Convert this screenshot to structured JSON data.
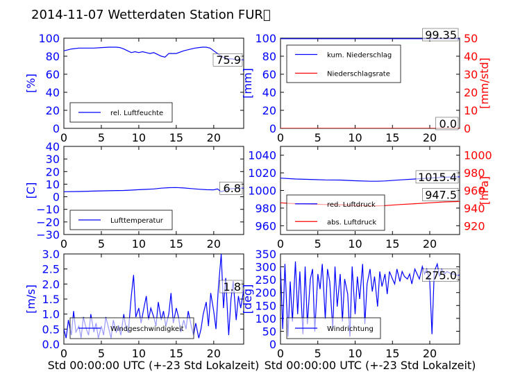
{
  "title": "2014-11-07 Wetterdaten Station FUR\u0000",
  "colors": {
    "blue": "#0000ff",
    "red": "#ff0000",
    "black": "#000000"
  },
  "chart_data": [
    {
      "id": "humidity",
      "type": "line",
      "xlim": [
        0,
        24
      ],
      "ylim": [
        0,
        100
      ],
      "xticks": [
        "0",
        "5",
        "10",
        "15",
        "20"
      ],
      "yticks": [
        "0",
        "20",
        "40",
        "60",
        "80",
        "100"
      ],
      "ylabel": "[%]",
      "last_value": "75.9",
      "series": [
        {
          "name": "rel. Luftfeuchte",
          "color": "#0000ff",
          "x": [
            0,
            0.5,
            1,
            2,
            3,
            4,
            5,
            6,
            7,
            7.5,
            8,
            8.5,
            9,
            9.5,
            10,
            10.5,
            11,
            11.5,
            12,
            12.5,
            13,
            13.5,
            14,
            15,
            16,
            17,
            17.5,
            18,
            18.5,
            19,
            19.5,
            20,
            20.5,
            21,
            21.5,
            22,
            22.5,
            23,
            23.5,
            24
          ],
          "y": [
            86,
            87,
            88,
            89,
            89,
            89,
            89.5,
            90,
            90,
            89.5,
            88,
            86,
            84,
            85,
            84,
            85,
            84,
            83,
            84,
            82,
            80,
            79,
            83,
            83,
            86,
            88,
            89,
            89.5,
            90,
            90,
            89,
            86,
            83,
            80,
            78,
            77,
            77,
            76,
            76,
            76
          ]
        }
      ]
    },
    {
      "id": "precip",
      "type": "line",
      "xlim": [
        0,
        24
      ],
      "ylim": [
        0,
        100
      ],
      "ylim_right": [
        0,
        50
      ],
      "xticks": [
        "0",
        "5",
        "10",
        "15",
        "20"
      ],
      "yticks": [
        "0",
        "20",
        "40",
        "60",
        "80",
        "100"
      ],
      "yticks_right": [
        "0",
        "10",
        "20",
        "30",
        "40",
        "50"
      ],
      "ylabel": "[mm]",
      "ylabel_right": "[mm/std]",
      "last_value": "99.35",
      "last_value_right": "0.0",
      "series": [
        {
          "name": "kum. Niederschlag",
          "color": "#0000ff",
          "axis": "left",
          "x": [
            0,
            24
          ],
          "y": [
            99.35,
            99.35
          ]
        },
        {
          "name": "Niederschlagsrate",
          "color": "#ff0000",
          "axis": "right",
          "x": [
            0,
            24
          ],
          "y": [
            0,
            0
          ]
        }
      ]
    },
    {
      "id": "temperature",
      "type": "line",
      "xlim": [
        0,
        24
      ],
      "ylim": [
        -30,
        40
      ],
      "xticks": [
        "0",
        "5",
        "10",
        "15",
        "20"
      ],
      "yticks": [
        "−30",
        "−20",
        "−10",
        "0",
        "10",
        "20",
        "30",
        "40"
      ],
      "ylabel": "[C]",
      "last_value": "6.8",
      "series": [
        {
          "name": "Lufttemperatur",
          "color": "#0000ff",
          "x": [
            0,
            2,
            4,
            6,
            8,
            9,
            10,
            11,
            12,
            13,
            14,
            15,
            16,
            17,
            18,
            19,
            20,
            20.5,
            21,
            21.5,
            22,
            23,
            24
          ],
          "y": [
            4,
            4.2,
            4.5,
            4.8,
            5,
            5.3,
            5.6,
            5.9,
            6.2,
            6.8,
            7.2,
            7.3,
            7,
            6.5,
            6,
            5.6,
            5.5,
            6.2,
            4,
            5,
            6.2,
            6.7,
            6.8
          ]
        }
      ]
    },
    {
      "id": "pressure",
      "type": "line",
      "xlim": [
        0,
        24
      ],
      "ylim": [
        950,
        1050
      ],
      "ylim_right": [
        910,
        1010
      ],
      "xticks": [
        "0",
        "5",
        "10",
        "15",
        "20"
      ],
      "yticks": [
        "960",
        "980",
        "1000",
        "1020",
        "1040"
      ],
      "yticks_right": [
        "920",
        "940",
        "960",
        "980",
        "1000"
      ],
      "ylabel_right": "[hPa]",
      "last_value": "1015.4",
      "last_value_right": "947.5",
      "series": [
        {
          "name": "red. Luftdruck",
          "color": "#0000ff",
          "axis": "left",
          "x": [
            0,
            2,
            4,
            6,
            8,
            10,
            12,
            13,
            14,
            16,
            18,
            20,
            22,
            24
          ],
          "y": [
            1014,
            1013,
            1012.5,
            1012,
            1011.8,
            1011,
            1010.5,
            1010.5,
            1010.8,
            1012,
            1013,
            1014,
            1015,
            1015.4
          ]
        },
        {
          "name": "abs. Luftdruck",
          "color": "#ff0000",
          "axis": "right",
          "x": [
            0,
            2,
            4,
            6,
            8,
            10,
            12,
            13,
            14,
            16,
            18,
            20,
            22,
            24
          ],
          "y": [
            946,
            945,
            944.5,
            944,
            943.8,
            943,
            942.5,
            942.5,
            942.8,
            944,
            945,
            946,
            947,
            947.5
          ]
        }
      ]
    },
    {
      "id": "windspeed",
      "type": "line",
      "xlim": [
        0,
        24
      ],
      "ylim": [
        0,
        3
      ],
      "xticks": [
        "0",
        "5",
        "10",
        "15",
        "20"
      ],
      "yticks": [
        "0.0",
        "0.5",
        "1.0",
        "1.5",
        "2.0",
        "2.5",
        "3.0"
      ],
      "ylabel": "[m/s]",
      "xlabel": "Std 00:00:00 UTC (+-23 Std Lokalzeit)",
      "last_value": "1.8",
      "series": [
        {
          "name": "Windgeschwindigkeit",
          "color": "#0000ff",
          "x": [
            0,
            0.3,
            0.6,
            1,
            1.3,
            1.6,
            2,
            2.3,
            2.6,
            3,
            3.3,
            3.6,
            4,
            4.3,
            4.6,
            5,
            5.3,
            5.6,
            6,
            6.3,
            6.6,
            7,
            7.3,
            7.6,
            8,
            8.3,
            8.6,
            9,
            9.3,
            9.6,
            10,
            10.3,
            10.6,
            11,
            11.3,
            11.6,
            12,
            12.3,
            12.6,
            13,
            13.3,
            13.6,
            14,
            14.3,
            14.6,
            15,
            15.3,
            15.6,
            16,
            16.3,
            16.6,
            17,
            17.3,
            17.6,
            18,
            18.3,
            18.6,
            19,
            19.3,
            19.6,
            20,
            20.3,
            20.6,
            21,
            21.3,
            21.6,
            22,
            22.3,
            22.6,
            23,
            23.3,
            23.6,
            24
          ],
          "y": [
            0.5,
            0.2,
            0.8,
            0.3,
            1.1,
            0.4,
            0.6,
            0.2,
            0.9,
            0.5,
            0.3,
            1.0,
            0.4,
            0.7,
            0.2,
            0.6,
            0.3,
            0.9,
            0.5,
            0.2,
            0.8,
            0.4,
            0.6,
            0.3,
            1.0,
            0.5,
            0.4,
            1.6,
            2.3,
            0.9,
            1.2,
            0.7,
            1.1,
            1.6,
            0.8,
            1.2,
            0.9,
            0.6,
            1.4,
            0.8,
            1.1,
            0.6,
            1.0,
            1.7,
            0.7,
            1.2,
            0.9,
            0.4,
            0.8,
            0.5,
            1.1,
            0.6,
            0.3,
            0.7,
            0.2,
            0.5,
            1.0,
            1.4,
            0.6,
            1.7,
            1.1,
            0.5,
            1.8,
            3.0,
            1.2,
            2.2,
            0.3,
            1.5,
            2.1,
            0.8,
            1.6,
            1.2,
            1.8
          ]
        }
      ]
    },
    {
      "id": "winddir",
      "type": "line",
      "xlim": [
        0,
        24
      ],
      "ylim": [
        0,
        360
      ],
      "xticks": [
        "0",
        "5",
        "10",
        "15",
        "20"
      ],
      "yticks": [
        "0",
        "50",
        "100",
        "150",
        "200",
        "250",
        "300",
        "350"
      ],
      "ylabel": "[deg]",
      "xlabel": "Std 00:00:00 UTC (+-23 Std Lokalzeit)",
      "last_value": "275.0",
      "series": [
        {
          "name": "Windrichtung",
          "color": "#0000ff",
          "x": [
            0,
            0.3,
            0.6,
            1,
            1.3,
            1.6,
            2,
            2.3,
            2.6,
            3,
            3.3,
            3.6,
            4,
            4.3,
            4.6,
            5,
            5.3,
            5.6,
            6,
            6.3,
            6.6,
            7,
            7.3,
            7.6,
            8,
            8.3,
            8.6,
            9,
            9.3,
            9.6,
            10,
            10.3,
            10.6,
            11,
            11.3,
            11.6,
            12,
            12.3,
            12.6,
            13,
            13.3,
            13.6,
            14,
            14.3,
            14.6,
            15,
            15.3,
            15.6,
            16,
            16.3,
            16.6,
            17,
            17.3,
            17.6,
            18,
            18.3,
            18.6,
            19,
            19.3,
            19.6,
            20,
            20.3,
            20.6,
            21,
            21.3,
            21.6,
            22,
            22.3,
            22.6,
            23,
            23.3,
            23.6,
            24
          ],
          "y": [
            310,
            60,
            320,
            30,
            250,
            90,
            330,
            120,
            290,
            40,
            310,
            80,
            260,
            300,
            50,
            280,
            220,
            320,
            100,
            300,
            250,
            60,
            310,
            150,
            280,
            90,
            260,
            200,
            30,
            310,
            120,
            270,
            180,
            320,
            80,
            240,
            300,
            210,
            270,
            150,
            290,
            230,
            280,
            200,
            290,
            260,
            240,
            300,
            250,
            290,
            270,
            260,
            280,
            240,
            300,
            280,
            260,
            310,
            280,
            300,
            250,
            40,
            290,
            320,
            270,
            300,
            280,
            290,
            285,
            280,
            280,
            275,
            275
          ]
        }
      ]
    }
  ]
}
